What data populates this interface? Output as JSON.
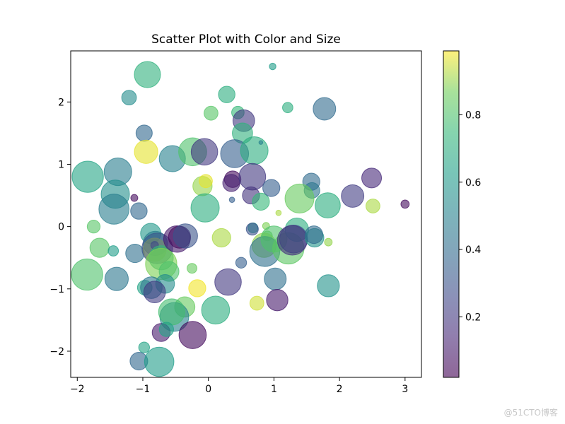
{
  "chart_data": {
    "type": "scatter",
    "title": "Scatter Plot with Color and Size",
    "xlabel": "",
    "ylabel": "",
    "xlim": [
      -2.1,
      3.25
    ],
    "ylim": [
      -2.42,
      2.82
    ],
    "xticks": [
      -2,
      -1,
      0,
      1,
      2,
      3
    ],
    "yticks": [
      -2,
      -1,
      0,
      1,
      2
    ],
    "grid": false,
    "colormap": "viridis",
    "alpha": 0.6,
    "colorbar": {
      "range": [
        0.02,
        0.99
      ],
      "ticks": [
        0.2,
        0.4,
        0.6,
        0.8
      ]
    },
    "size_unit": "marker area (pt^2)",
    "points": [
      {
        "x": -0.93,
        "y": 2.44,
        "c": 0.72,
        "s": 700
      },
      {
        "x": -1.21,
        "y": 2.07,
        "c": 0.55,
        "s": 220
      },
      {
        "x": 0.28,
        "y": 2.12,
        "c": 0.7,
        "s": 280
      },
      {
        "x": 0.98,
        "y": 2.57,
        "c": 0.62,
        "s": 45
      },
      {
        "x": 1.77,
        "y": 1.89,
        "c": 0.4,
        "s": 520
      },
      {
        "x": 1.21,
        "y": 1.91,
        "c": 0.7,
        "s": 110
      },
      {
        "x": 0.04,
        "y": 1.82,
        "c": 0.82,
        "s": 200
      },
      {
        "x": 0.45,
        "y": 1.83,
        "c": 0.75,
        "s": 160
      },
      {
        "x": 0.54,
        "y": 1.7,
        "c": 0.2,
        "s": 480
      },
      {
        "x": 0.52,
        "y": 1.5,
        "c": 0.72,
        "s": 420
      },
      {
        "x": -0.98,
        "y": 1.5,
        "c": 0.38,
        "s": 270
      },
      {
        "x": -0.95,
        "y": 1.2,
        "c": 0.97,
        "s": 560
      },
      {
        "x": -0.55,
        "y": 1.09,
        "c": 0.5,
        "s": 700
      },
      {
        "x": -0.24,
        "y": 1.2,
        "c": 0.8,
        "s": 800
      },
      {
        "x": -0.06,
        "y": 1.2,
        "c": 0.2,
        "s": 720
      },
      {
        "x": 0.4,
        "y": 1.17,
        "c": 0.35,
        "s": 800
      },
      {
        "x": 0.7,
        "y": 1.22,
        "c": 0.7,
        "s": 780
      },
      {
        "x": 0.8,
        "y": 1.35,
        "c": 0.5,
        "s": 15
      },
      {
        "x": -1.84,
        "y": 0.8,
        "c": 0.66,
        "s": 1000
      },
      {
        "x": -1.38,
        "y": 0.88,
        "c": 0.48,
        "s": 780
      },
      {
        "x": -1.42,
        "y": 0.52,
        "c": 0.56,
        "s": 820
      },
      {
        "x": -1.44,
        "y": 0.28,
        "c": 0.48,
        "s": 930
      },
      {
        "x": -1.13,
        "y": 0.46,
        "c": 0.05,
        "s": 50
      },
      {
        "x": -1.06,
        "y": 0.25,
        "c": 0.38,
        "s": 280
      },
      {
        "x": -0.09,
        "y": 0.65,
        "c": 0.9,
        "s": 380
      },
      {
        "x": -0.04,
        "y": 0.73,
        "c": 0.97,
        "s": 180
      },
      {
        "x": -0.05,
        "y": 0.3,
        "c": 0.7,
        "s": 820
      },
      {
        "x": 0.37,
        "y": 0.76,
        "c": 0.05,
        "s": 280
      },
      {
        "x": 0.35,
        "y": 0.7,
        "c": 0.12,
        "s": 300
      },
      {
        "x": 0.36,
        "y": 0.43,
        "c": 0.35,
        "s": 30
      },
      {
        "x": 0.67,
        "y": 0.8,
        "c": 0.2,
        "s": 730
      },
      {
        "x": 0.65,
        "y": 0.5,
        "c": 0.18,
        "s": 300
      },
      {
        "x": 0.8,
        "y": 0.4,
        "c": 0.75,
        "s": 300
      },
      {
        "x": 0.96,
        "y": 0.62,
        "c": 0.35,
        "s": 300
      },
      {
        "x": 1.57,
        "y": 0.72,
        "c": 0.4,
        "s": 300
      },
      {
        "x": 1.58,
        "y": 0.58,
        "c": 0.45,
        "s": 250
      },
      {
        "x": 1.39,
        "y": 0.45,
        "c": 0.85,
        "s": 860
      },
      {
        "x": 1.82,
        "y": 0.34,
        "c": 0.7,
        "s": 650
      },
      {
        "x": 2.2,
        "y": 0.49,
        "c": 0.22,
        "s": 520
      },
      {
        "x": 2.49,
        "y": 0.78,
        "c": 0.15,
        "s": 400
      },
      {
        "x": 2.51,
        "y": 0.33,
        "c": 0.92,
        "s": 200
      },
      {
        "x": 3.0,
        "y": 0.36,
        "c": 0.05,
        "s": 70
      },
      {
        "x": -1.75,
        "y": 0.0,
        "c": 0.82,
        "s": 170
      },
      {
        "x": -1.66,
        "y": -0.34,
        "c": 0.82,
        "s": 380
      },
      {
        "x": -1.45,
        "y": -0.39,
        "c": 0.62,
        "s": 110
      },
      {
        "x": -1.12,
        "y": -0.43,
        "c": 0.42,
        "s": 350
      },
      {
        "x": -1.85,
        "y": -0.77,
        "c": 0.8,
        "s": 1000
      },
      {
        "x": -1.4,
        "y": -0.84,
        "c": 0.45,
        "s": 560
      },
      {
        "x": -0.88,
        "y": -0.11,
        "c": 0.6,
        "s": 420
      },
      {
        "x": -0.81,
        "y": -0.27,
        "c": 0.48,
        "s": 600
      },
      {
        "x": -0.82,
        "y": -0.37,
        "c": 0.95,
        "s": 550
      },
      {
        "x": -0.82,
        "y": -0.3,
        "c": 0.22,
        "s": 60
      },
      {
        "x": -0.78,
        "y": -0.35,
        "c": 0.3,
        "s": 960
      },
      {
        "x": -0.72,
        "y": -0.5,
        "c": 0.75,
        "s": 600
      },
      {
        "x": -0.72,
        "y": -0.6,
        "c": 0.88,
        "s": 1000
      },
      {
        "x": -0.6,
        "y": -0.72,
        "c": 0.8,
        "s": 400
      },
      {
        "x": -0.48,
        "y": -0.2,
        "c": 0.1,
        "s": 720
      },
      {
        "x": -0.44,
        "y": -0.17,
        "c": 0.05,
        "s": 500
      },
      {
        "x": -0.35,
        "y": -0.15,
        "c": 0.3,
        "s": 600
      },
      {
        "x": -0.25,
        "y": -0.67,
        "c": 0.85,
        "s": 100
      },
      {
        "x": 0.2,
        "y": -0.18,
        "c": 0.92,
        "s": 350
      },
      {
        "x": 0.68,
        "y": -0.02,
        "c": 0.62,
        "s": 100
      },
      {
        "x": 0.67,
        "y": -0.04,
        "c": 0.3,
        "s": 150
      },
      {
        "x": 0.88,
        "y": 0.01,
        "c": 0.88,
        "s": 50
      },
      {
        "x": 0.9,
        "y": -0.15,
        "c": 0.85,
        "s": 100
      },
      {
        "x": 0.85,
        "y": -0.3,
        "c": 0.9,
        "s": 600
      },
      {
        "x": 0.86,
        "y": -0.4,
        "c": 0.42,
        "s": 920
      },
      {
        "x": 1.0,
        "y": -0.2,
        "c": 0.8,
        "s": 700
      },
      {
        "x": 1.22,
        "y": -0.35,
        "c": 0.83,
        "s": 1000
      },
      {
        "x": 1.35,
        "y": -0.05,
        "c": 0.7,
        "s": 560
      },
      {
        "x": 1.3,
        "y": -0.2,
        "c": 0.3,
        "s": 800
      },
      {
        "x": 1.28,
        "y": -0.22,
        "c": 0.18,
        "s": 900
      },
      {
        "x": 1.62,
        "y": -0.18,
        "c": 0.58,
        "s": 350
      },
      {
        "x": 1.61,
        "y": -0.13,
        "c": 0.4,
        "s": 320
      },
      {
        "x": 1.83,
        "y": -0.25,
        "c": 0.9,
        "s": 60
      },
      {
        "x": 1.07,
        "y": 0.22,
        "c": 0.92,
        "s": 30
      },
      {
        "x": 0.5,
        "y": -0.58,
        "c": 0.35,
        "s": 120
      },
      {
        "x": 0.3,
        "y": -0.89,
        "c": 0.2,
        "s": 720
      },
      {
        "x": 1.02,
        "y": -0.84,
        "c": 0.42,
        "s": 490
      },
      {
        "x": 1.83,
        "y": -0.95,
        "c": 0.58,
        "s": 500
      },
      {
        "x": 0.74,
        "y": -1.23,
        "c": 0.95,
        "s": 200
      },
      {
        "x": 1.05,
        "y": -1.18,
        "c": 0.1,
        "s": 470
      },
      {
        "x": -0.97,
        "y": -0.98,
        "c": 0.65,
        "s": 220
      },
      {
        "x": -0.87,
        "y": -0.98,
        "c": 0.45,
        "s": 480
      },
      {
        "x": -0.66,
        "y": -0.92,
        "c": 0.55,
        "s": 360
      },
      {
        "x": -0.82,
        "y": -1.05,
        "c": 0.22,
        "s": 480
      },
      {
        "x": -0.17,
        "y": -0.99,
        "c": 0.98,
        "s": 300
      },
      {
        "x": -0.36,
        "y": -1.29,
        "c": 0.85,
        "s": 420
      },
      {
        "x": -0.52,
        "y": -1.45,
        "c": 0.5,
        "s": 850
      },
      {
        "x": -0.56,
        "y": -1.37,
        "c": 0.78,
        "s": 700
      },
      {
        "x": -0.72,
        "y": -1.7,
        "c": 0.1,
        "s": 330
      },
      {
        "x": -0.64,
        "y": -1.65,
        "c": 0.65,
        "s": 210
      },
      {
        "x": 0.11,
        "y": -1.34,
        "c": 0.7,
        "s": 800
      },
      {
        "x": -0.24,
        "y": -1.74,
        "c": 0.05,
        "s": 760
      },
      {
        "x": -0.98,
        "y": -1.94,
        "c": 0.65,
        "s": 120
      },
      {
        "x": -1.06,
        "y": -2.16,
        "c": 0.38,
        "s": 320
      },
      {
        "x": -0.75,
        "y": -2.17,
        "c": 0.62,
        "s": 880
      }
    ]
  },
  "watermark": "@51CTO博客"
}
